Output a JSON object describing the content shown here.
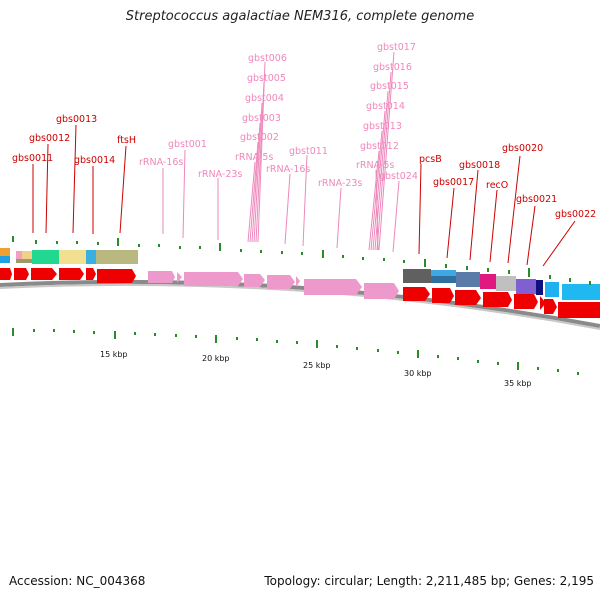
{
  "title": "Streptococcus agalactiae NEM316, complete genome",
  "accession_label": "Accession: NC_004368",
  "topology_label": "Topology: circular; Length: 2,211,485 bp; Genes: 2,195",
  "colors": {
    "gene": "#ee0000",
    "rna": "#ee99cc",
    "label_gene": "#cc0000",
    "label_rna": "#ee88bb",
    "tick": "#2b8a2b",
    "backbone": "#999999"
  },
  "scale_labels": [
    "15 kbp",
    "20 kbp",
    "25 kbp",
    "30 kbp",
    "35 kbp"
  ],
  "gene_labels": [
    "gbs0011",
    "gbs0012",
    "gbs0013",
    "gbs0014",
    "ftsH",
    "gbst001",
    "rRNA-16s",
    "rRNA-23s",
    "gbst006",
    "gbst005",
    "gbst004",
    "gbst003",
    "gbst002",
    "rRNA-5s",
    "gbst011",
    "rRNA-16s",
    "rRNA-23s",
    "gbst017",
    "gbst016",
    "gbst015",
    "gbst014",
    "gbst013",
    "gbst012",
    "rRNA-5s",
    "gbst024",
    "pcsB",
    "gbs0017",
    "gbs0018",
    "recO",
    "gbs0020",
    "gbs0021",
    "gbs0022"
  ]
}
